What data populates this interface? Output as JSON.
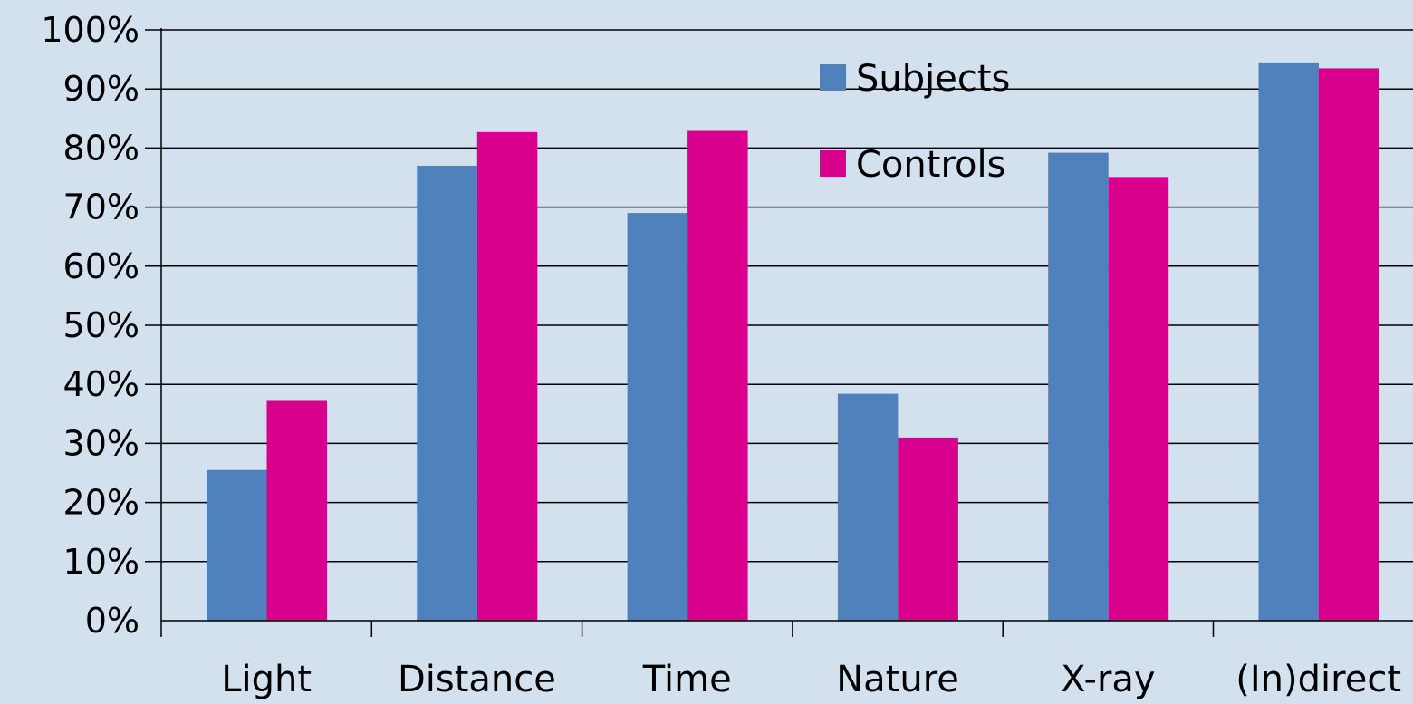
{
  "chart_data": {
    "type": "bar",
    "title": "",
    "xlabel": "",
    "ylabel": "",
    "categories": [
      "Light",
      "Distance",
      "Time",
      "Nature",
      "X-ray",
      "(In)direct"
    ],
    "series": [
      {
        "name": "Subjects",
        "color": "#4f81bd",
        "values": [
          25.5,
          77,
          69,
          38.4,
          79.2,
          94.5
        ]
      },
      {
        "name": "Controls",
        "color": "#d9008d",
        "values": [
          37.2,
          82.7,
          82.9,
          31,
          75.1,
          93.5
        ]
      }
    ],
    "ylim": [
      0,
      100
    ],
    "y_ticks": [
      "0%",
      "10%",
      "20%",
      "30%",
      "40%",
      "50%",
      "60%",
      "70%",
      "80%",
      "90%",
      "100%"
    ],
    "grid": true,
    "legend_position": "top-center",
    "background": "#d3e1ee"
  }
}
